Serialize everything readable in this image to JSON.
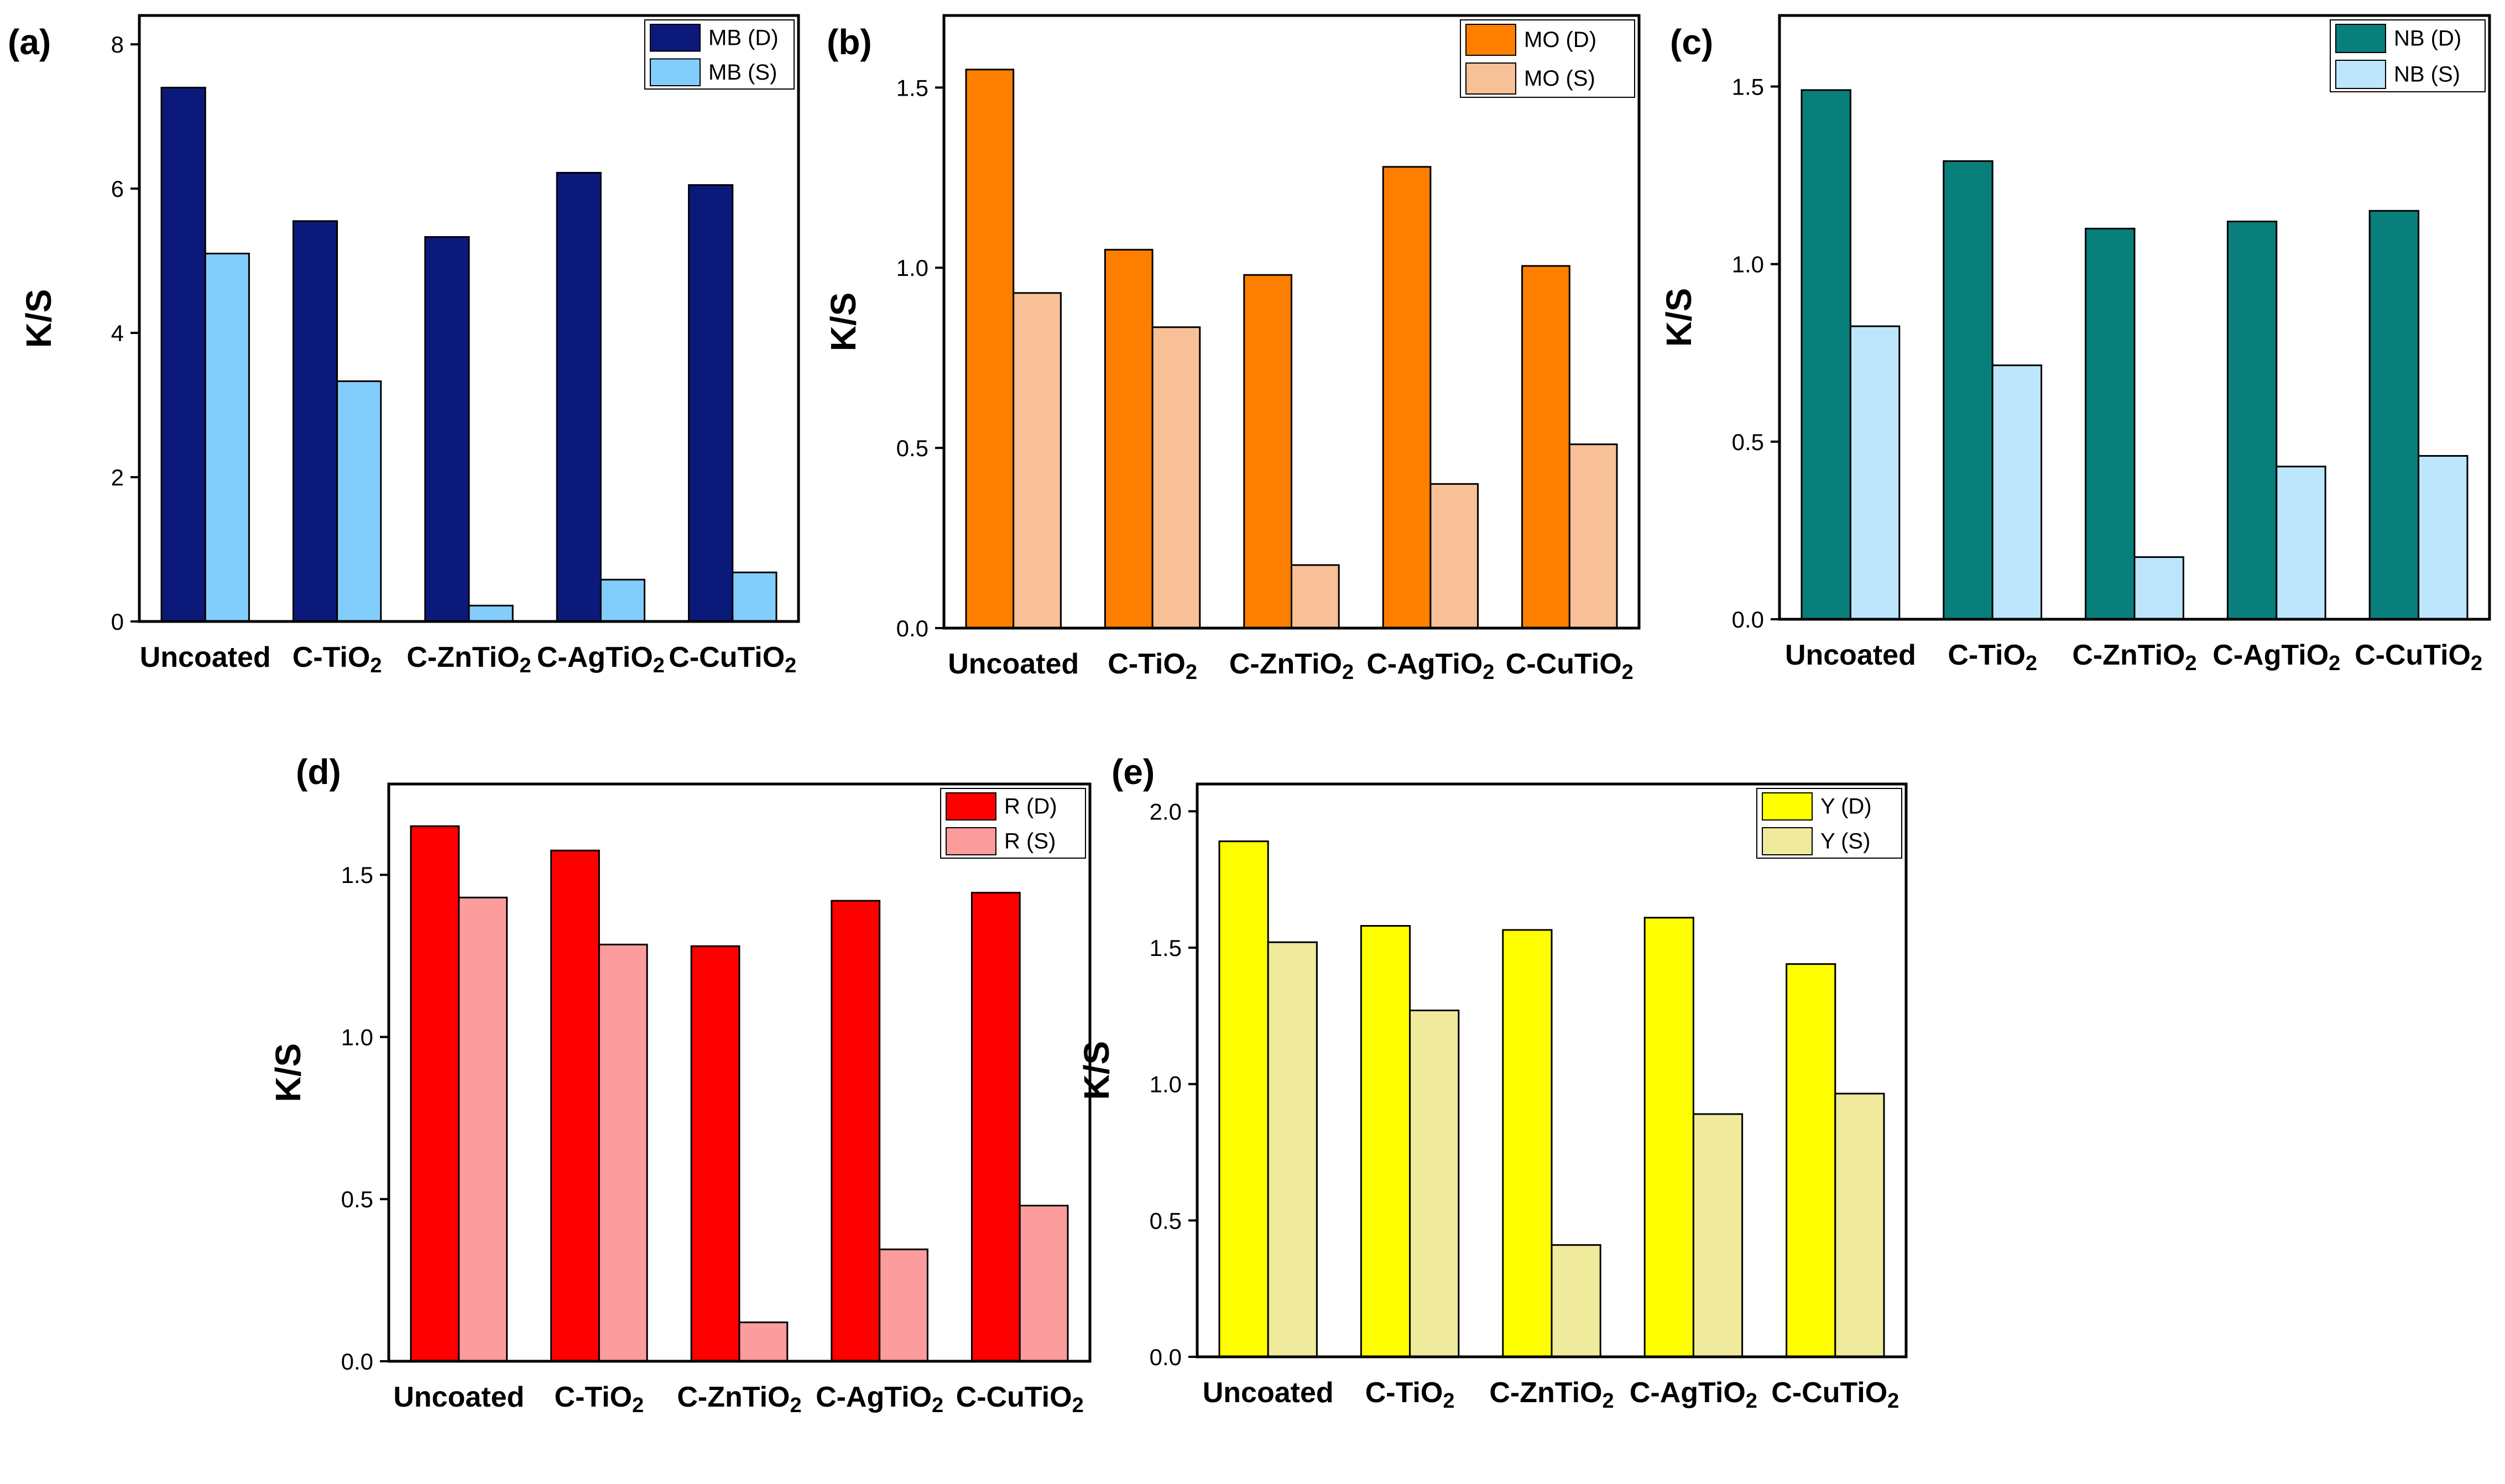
{
  "chart_data": [
    {
      "type": "bar",
      "panel_label": "(a)",
      "ylabel": "K/S",
      "xlabel": "",
      "categories": [
        "Uncoated",
        "C-TiO2",
        "C-ZnTiO2",
        "C-AgTiO2",
        "C-CuTiO2"
      ],
      "ylim": [
        0,
        8.4
      ],
      "yticks": [
        0,
        2,
        4,
        6,
        8
      ],
      "series": [
        {
          "name": "MB (D)",
          "color": "#0b1a7a",
          "values": [
            7.4,
            5.55,
            5.33,
            6.22,
            6.05
          ]
        },
        {
          "name": "MB (S)",
          "color": "#82cdfb",
          "values": [
            5.1,
            3.33,
            0.22,
            0.58,
            0.68
          ]
        }
      ],
      "legend": "top-right"
    },
    {
      "type": "bar",
      "panel_label": "(b)",
      "ylabel": "K/S",
      "xlabel": "",
      "categories": [
        "Uncoated",
        "C-TiO2",
        "C-ZnTiO2",
        "C-AgTiO2",
        "C-CuTiO2"
      ],
      "ylim": [
        0,
        1.7
      ],
      "yticks": [
        0.0,
        0.5,
        1.0,
        1.5
      ],
      "series": [
        {
          "name": "MO (D)",
          "color": "#fe7f00",
          "values": [
            1.55,
            1.05,
            0.98,
            1.28,
            1.005
          ]
        },
        {
          "name": "MO (S)",
          "color": "#f7c097",
          "values": [
            0.93,
            0.835,
            0.175,
            0.4,
            0.51
          ]
        }
      ],
      "legend": "top-right"
    },
    {
      "type": "bar",
      "panel_label": "(c)",
      "ylabel": "K/S",
      "xlabel": "",
      "categories": [
        "Uncoated",
        "C-TiO2",
        "C-ZnTiO2",
        "C-AgTiO2",
        "C-CuTiO2"
      ],
      "ylim": [
        0,
        1.7
      ],
      "yticks": [
        0.0,
        0.5,
        1.0,
        1.5
      ],
      "series": [
        {
          "name": "NB (D)",
          "color": "#087f7b",
          "values": [
            1.49,
            1.29,
            1.1,
            1.12,
            1.15
          ]
        },
        {
          "name": "NB (S)",
          "color": "#bde6fc",
          "values": [
            0.825,
            0.715,
            0.175,
            0.43,
            0.46
          ]
        }
      ],
      "legend": "top-right"
    },
    {
      "type": "bar",
      "panel_label": "(d)",
      "ylabel": "K/S",
      "xlabel": "",
      "categories": [
        "Uncoated",
        "C-TiO2",
        "C-ZnTiO2",
        "C-AgTiO2",
        "C-CuTiO2"
      ],
      "ylim": [
        0,
        1.78
      ],
      "yticks": [
        0.0,
        0.5,
        1.0,
        1.5
      ],
      "series": [
        {
          "name": "R (D)",
          "color": "#fe0000",
          "values": [
            1.65,
            1.575,
            1.28,
            1.42,
            1.445
          ]
        },
        {
          "name": "R (S)",
          "color": "#fc9c9c",
          "values": [
            1.43,
            1.285,
            0.12,
            0.345,
            0.48
          ]
        }
      ],
      "legend": "top-right"
    },
    {
      "type": "bar",
      "panel_label": "(e)",
      "ylabel": "K/S",
      "xlabel": "",
      "categories": [
        "Uncoated",
        "C-TiO2",
        "C-ZnTiO2",
        "C-AgTiO2",
        "C-CuTiO2"
      ],
      "ylim": [
        0,
        2.1
      ],
      "yticks": [
        0.0,
        0.5,
        1.0,
        1.5,
        2.0
      ],
      "series": [
        {
          "name": "Y (D)",
          "color": "#fefe00",
          "values": [
            1.89,
            1.58,
            1.565,
            1.61,
            1.44
          ]
        },
        {
          "name": "Y (S)",
          "color": "#efea9c",
          "values": [
            1.52,
            1.27,
            0.41,
            0.89,
            0.965
          ]
        }
      ],
      "legend": "top-right"
    }
  ]
}
